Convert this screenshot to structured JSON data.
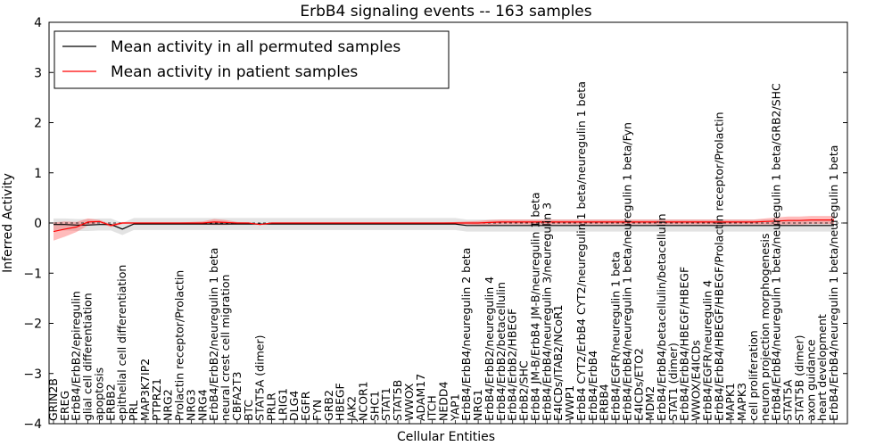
{
  "chart_data": {
    "type": "line",
    "title": "ErbB4 signaling events -- 163 samples",
    "xlabel": "Cellular Entities",
    "ylabel": "Inferred Activity",
    "ylim": [
      -4,
      4
    ],
    "yticks": [
      -4,
      -3,
      -2,
      -1,
      0,
      1,
      2,
      3,
      4
    ],
    "ytick_labels": [
      "−4",
      "−3",
      "−2",
      "−1",
      "0",
      "1",
      "2",
      "3",
      "4"
    ],
    "legend_position": "top-left",
    "categories": [
      "GRIN2B",
      "EREG",
      "ErbB4/ErbB2/epiregulin",
      "glial cell differentiation",
      "apoptosis",
      "ERBB2",
      "epithelial cell differentiation",
      "PRL",
      "MAP3K7IP2",
      "PTPRZ1",
      "NRG2",
      "Prolactin receptor/Prolactin",
      "NRG3",
      "NRG4",
      "ErbB4/ErbB2/neuregulin 1 beta",
      "neural crest cell migration",
      "CBFA2T3",
      "BTC",
      "STAT5A (dimer)",
      "PRLR",
      "LRIG1",
      "DLG4",
      "EGFR",
      "FYN",
      "GRB2",
      "HBEGF",
      "JAK2",
      "NCOR1",
      "SHC1",
      "STAT1",
      "STAT5B",
      "WWOX",
      "ADAM17",
      "ITCH",
      "NEDD4",
      "YAP1",
      "ErbB4/ErbB4/neuregulin 2 beta",
      "NRG1",
      "ErbB4/ErbB2/neuregulin 4",
      "ErbB4/ErbB2/betacellulin",
      "ErbB4/ErbB2/HBEGF",
      "ErbB2/SHC",
      "ErbB4 JM-B/ErbB4 JM-B/neuregulin 1 beta",
      "ErbB4/ErbB4/neuregulin 3/neuregulin 3",
      "E4ICDs/ITAB2/NCoR1",
      "WWP1",
      "ErbB4 CYT2/ErbB4 CYT2/neuregulin 1 beta/neuregulin 1 beta",
      "ErbB4/ErbB4",
      "ERBB4",
      "ErbB4/EGFR/neuregulin 1 beta",
      "ErbB4/ErbB4/neuregulin 1 beta/neuregulin 1 beta/Fyn",
      "E4ICDs/ETO2",
      "MDM2",
      "ErbB4/ErbB4/betacellulin/betacellulin",
      "STAT1 (dimer)",
      "ErbB4/ErbB4/HBEGF/HBEGF",
      "WWOX/E4ICDs",
      "ErbB4/EGFR/neuregulin 4",
      "ErbB4/ErbB4/HBEGF/HBEGF/Prolactin receptor/Prolactin",
      "MAPK1",
      "MAPK3",
      "cell proliferation",
      "neuron projection morphogenesis",
      "ErbB4/ErbB4/neuregulin 1 beta/neuregulin 1 beta/GRB2/SHC",
      "STAT5A",
      "STAT5B (dimer)",
      "axon guidance",
      "heart development",
      "ErbB4/ErbB4/neuregulin 1 beta/neuregulin 1 beta"
    ],
    "series": [
      {
        "name": "Mean activity in all permuted samples",
        "color": "#000000",
        "values": [
          -0.03,
          -0.03,
          -0.04,
          -0.04,
          -0.03,
          -0.03,
          -0.12,
          -0.02,
          -0.02,
          -0.02,
          -0.02,
          -0.02,
          -0.02,
          -0.02,
          -0.02,
          -0.02,
          -0.02,
          -0.02,
          -0.02,
          -0.02,
          -0.02,
          -0.02,
          -0.02,
          -0.02,
          -0.02,
          -0.02,
          -0.02,
          -0.02,
          -0.02,
          -0.02,
          -0.02,
          -0.02,
          -0.02,
          -0.02,
          -0.02,
          -0.02,
          -0.05,
          -0.05,
          -0.05,
          -0.05,
          -0.05,
          -0.05,
          -0.05,
          -0.05,
          -0.05,
          -0.05,
          -0.05,
          -0.05,
          -0.05,
          -0.05,
          -0.05,
          -0.05,
          -0.05,
          -0.05,
          -0.05,
          -0.05,
          -0.05,
          -0.05,
          -0.05,
          -0.05,
          -0.05,
          -0.05,
          -0.05,
          -0.05,
          -0.05,
          -0.05,
          -0.05,
          -0.05,
          -0.05
        ],
        "band": 0.12
      },
      {
        "name": "Mean activity in patient samples",
        "color": "#ff0000",
        "values": [
          -0.17,
          -0.12,
          -0.08,
          0.02,
          0.03,
          -0.05,
          0.0,
          0.0,
          0.0,
          0.0,
          0.0,
          0.0,
          0.0,
          0.0,
          0.02,
          0.01,
          0.0,
          0.0,
          -0.03,
          0.0,
          0.0,
          0.0,
          0.0,
          0.0,
          0.0,
          0.0,
          0.0,
          0.0,
          0.0,
          0.0,
          0.0,
          0.0,
          0.0,
          0.0,
          0.0,
          0.0,
          0.0,
          0.0,
          0.01,
          0.02,
          0.02,
          0.02,
          0.02,
          0.02,
          0.02,
          0.02,
          0.02,
          0.02,
          0.02,
          0.02,
          0.02,
          0.02,
          0.02,
          0.02,
          0.02,
          0.02,
          0.02,
          0.02,
          0.02,
          0.02,
          0.02,
          0.02,
          0.03,
          0.04,
          0.05,
          0.05,
          0.06,
          0.06,
          0.06
        ],
        "band": [
          0.18,
          0.15,
          0.1,
          0.07,
          0.03,
          0.03,
          0.02,
          0.01,
          0.01,
          0.01,
          0.01,
          0.01,
          0.02,
          0.03,
          0.06,
          0.05,
          0.02,
          0.01,
          0.01,
          0.01,
          0.01,
          0.01,
          0.01,
          0.01,
          0.01,
          0.01,
          0.01,
          0.01,
          0.01,
          0.01,
          0.01,
          0.01,
          0.01,
          0.01,
          0.01,
          0.02,
          0.03,
          0.04,
          0.05,
          0.05,
          0.05,
          0.05,
          0.05,
          0.05,
          0.05,
          0.05,
          0.05,
          0.05,
          0.05,
          0.05,
          0.05,
          0.05,
          0.05,
          0.05,
          0.05,
          0.05,
          0.05,
          0.05,
          0.05,
          0.05,
          0.05,
          0.05,
          0.06,
          0.07,
          0.08,
          0.08,
          0.08,
          0.08,
          0.08
        ]
      }
    ]
  }
}
